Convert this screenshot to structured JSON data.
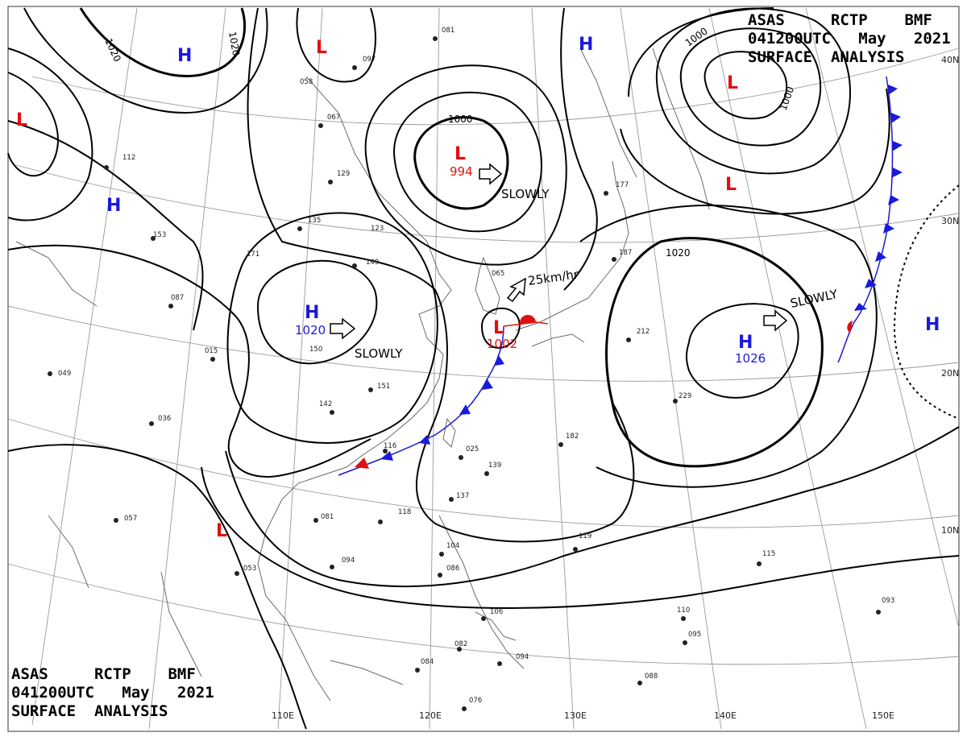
{
  "header": {
    "line1": "ASAS     RCTP    BMF",
    "line2": "041200UTC   May   2021",
    "line3": "SURFACE  ANALYSIS"
  },
  "footer": {
    "line1": "ASAS     RCTP    BMF",
    "line2": "041200UTC   May   2021",
    "line3": "SURFACE  ANALYSIS"
  },
  "colors": {
    "high": "#1a1adb",
    "low": "#e01010",
    "isobar": "#000000",
    "grid": "#888888",
    "coast": "#555555"
  },
  "grid_labels": {
    "lon": [
      "110E",
      "120E",
      "130E",
      "140E",
      "150E"
    ],
    "lat": [
      "40N",
      "30N",
      "20N",
      "10N"
    ]
  },
  "pressure_centers": [
    {
      "type": "H",
      "value": ""
    },
    {
      "type": "H",
      "value": ""
    },
    {
      "type": "H",
      "value": ""
    },
    {
      "type": "H",
      "value": "1020"
    },
    {
      "type": "H",
      "value": "1026"
    },
    {
      "type": "H",
      "value": ""
    },
    {
      "type": "L",
      "value": ""
    },
    {
      "type": "L",
      "value": ""
    },
    {
      "type": "L",
      "value": "994"
    },
    {
      "type": "L",
      "value": ""
    },
    {
      "type": "L",
      "value": ""
    },
    {
      "type": "L",
      "value": "1002"
    },
    {
      "type": "L",
      "value": ""
    }
  ],
  "isobar_labels": [
    "1020",
    "1020",
    "1000",
    "1000",
    "1020",
    "1000"
  ],
  "movement_tags": [
    "SLOWLY",
    "SLOWLY",
    "SLOWLY",
    "25km/hr"
  ],
  "station_labels": [
    "081",
    "097",
    "058",
    "067",
    "129",
    "135",
    "123",
    "149",
    "087",
    "015",
    "150",
    "049",
    "036",
    "151",
    "142",
    "116",
    "025",
    "139",
    "137",
    "118",
    "057",
    "053",
    "094",
    "081",
    "104",
    "086",
    "106",
    "084",
    "082",
    "094",
    "076",
    "119",
    "110",
    "095",
    "093",
    "088",
    "115",
    "229",
    "212",
    "187",
    "177",
    "182",
    "153",
    "065",
    "171",
    "112"
  ]
}
